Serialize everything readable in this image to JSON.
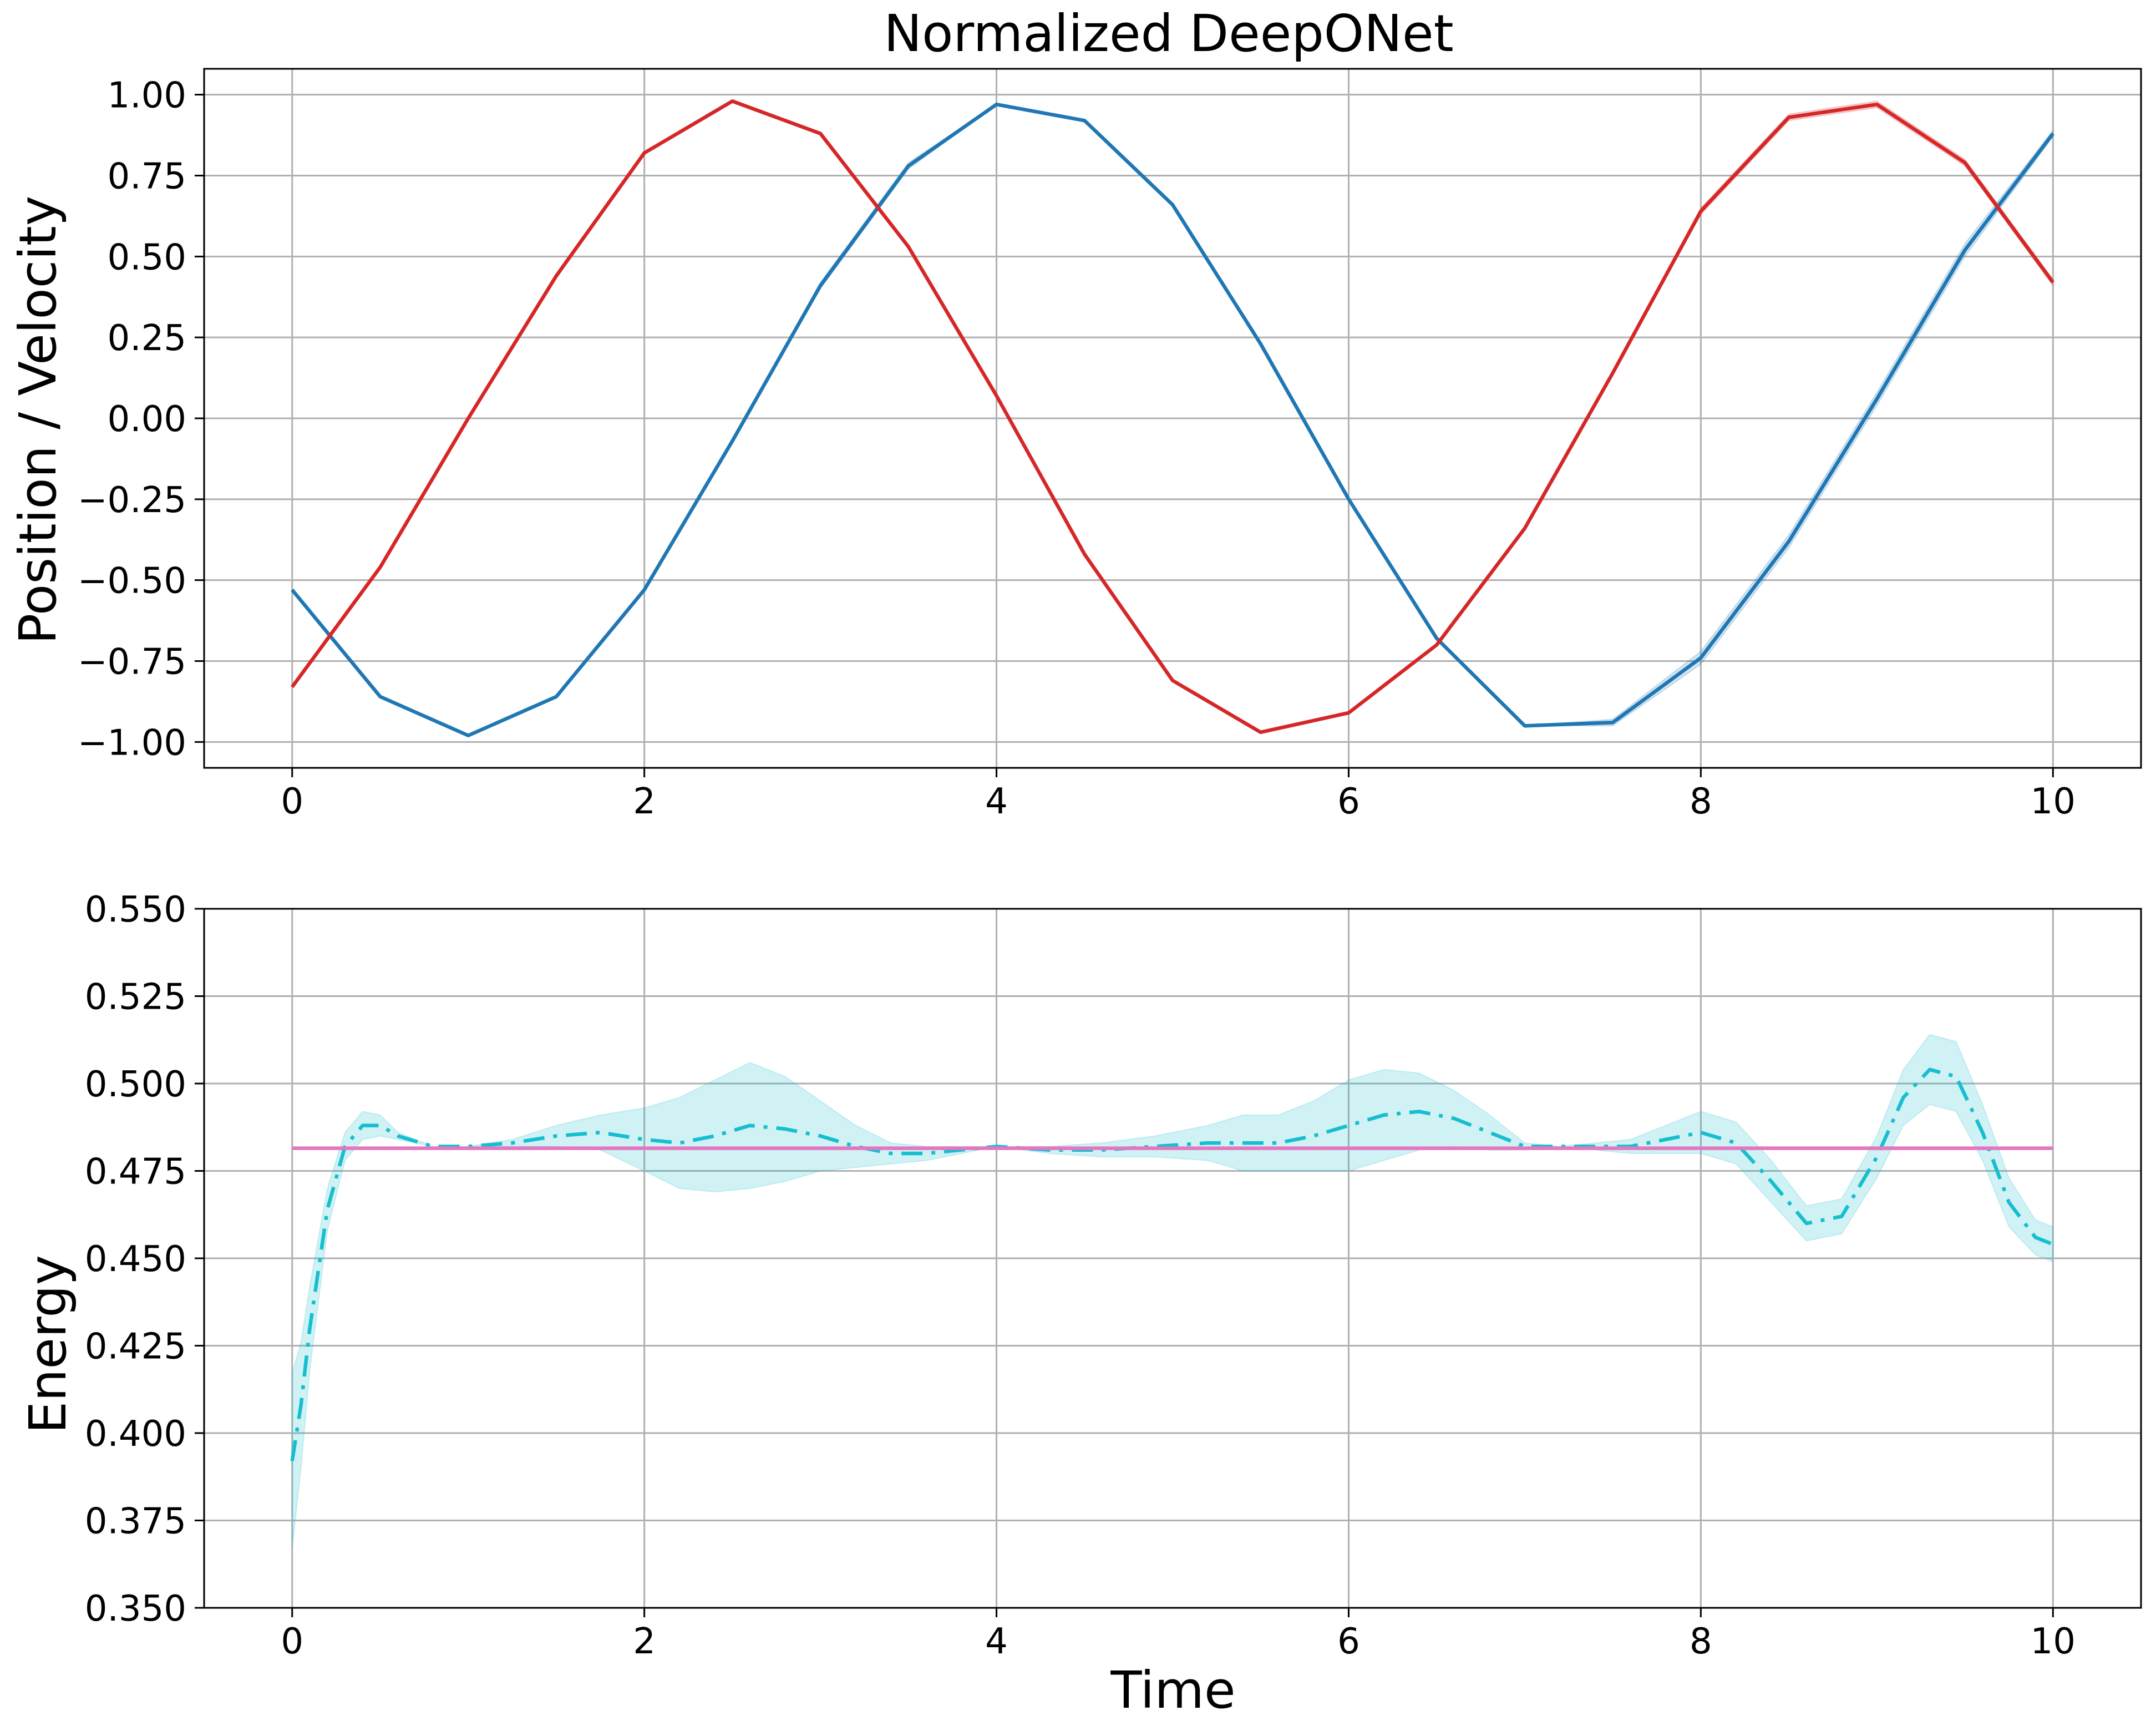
{
  "chart_data": [
    {
      "type": "line",
      "title": "Normalized DeepONet",
      "xlabel": "",
      "ylabel": "Position / Velocity",
      "xlim": [
        -0.5,
        10.5
      ],
      "ylim": [
        -1.08,
        1.08
      ],
      "grid": true,
      "x_ticks": [
        0,
        2,
        4,
        6,
        8,
        10
      ],
      "x_tick_labels": [
        "0",
        "2",
        "4",
        "6",
        "8",
        "10"
      ],
      "y_ticks": [
        1.0,
        0.75,
        0.5,
        0.25,
        0.0,
        -0.25,
        -0.5,
        -0.75,
        -1.0
      ],
      "y_tick_labels": [
        "1.00",
        "0.75",
        "0.50",
        "0.25",
        "0.00",
        "−0.25",
        "−0.50",
        "−0.75",
        "−1.00"
      ],
      "series": [
        {
          "color": "#1f77b4",
          "band_color": "#1f77b4",
          "x": [
            0,
            0.5,
            1.0,
            1.5,
            2.0,
            2.5,
            3.0,
            3.5,
            4.0,
            4.5,
            5.0,
            5.5,
            6.0,
            6.5,
            7.0,
            7.5,
            8.0,
            8.5,
            9.0,
            9.5,
            10.0
          ],
          "y": [
            -0.53,
            -0.86,
            -0.98,
            -0.86,
            -0.53,
            -0.07,
            0.41,
            0.78,
            0.97,
            0.92,
            0.66,
            0.23,
            -0.25,
            -0.68,
            -0.95,
            -0.94,
            -0.74,
            -0.38,
            0.06,
            0.52,
            0.88
          ],
          "band_halfwidth": [
            0,
            0,
            0,
            0,
            0,
            0,
            0.01,
            0.01,
            0,
            0,
            0,
            0,
            0,
            0,
            0,
            0.01,
            0.02,
            0.02,
            0.02,
            0.02,
            0.01
          ]
        },
        {
          "color": "#d62728",
          "band_color": "#d62728",
          "x": [
            0,
            0.5,
            1.0,
            1.5,
            2.0,
            2.5,
            3.0,
            3.5,
            4.0,
            4.5,
            5.0,
            5.5,
            6.0,
            6.5,
            7.0,
            7.5,
            8.0,
            8.5,
            9.0,
            9.5,
            10.0
          ],
          "y": [
            -0.83,
            -0.46,
            0.0,
            0.44,
            0.82,
            0.98,
            0.88,
            0.53,
            0.07,
            -0.42,
            -0.81,
            -0.97,
            -0.91,
            -0.7,
            -0.34,
            0.14,
            0.64,
            0.93,
            0.97,
            0.79,
            0.42
          ],
          "band_halfwidth": [
            0,
            0,
            0,
            0,
            0,
            0,
            0,
            0,
            0,
            0,
            0,
            0,
            0,
            0,
            0,
            0,
            0.01,
            0.01,
            0.01,
            0.01,
            0.01
          ]
        }
      ]
    },
    {
      "type": "line",
      "title": "",
      "xlabel": "Time",
      "ylabel": "Energy",
      "xlim": [
        -0.5,
        10.5
      ],
      "ylim": [
        0.35,
        0.55
      ],
      "grid": true,
      "x_ticks": [
        0,
        2,
        4,
        6,
        8,
        10
      ],
      "x_tick_labels": [
        "0",
        "2",
        "4",
        "6",
        "8",
        "10"
      ],
      "y_ticks": [
        0.35,
        0.375,
        0.4,
        0.425,
        0.45,
        0.475,
        0.5,
        0.525,
        0.55
      ],
      "y_tick_labels": [
        "0.350",
        "0.375",
        "0.400",
        "0.425",
        "0.450",
        "0.475",
        "0.500",
        "0.525",
        "0.550"
      ],
      "series": [
        {
          "color": "#17becf",
          "band_color": "#17becf",
          "dash": "dashdot",
          "x": [
            0,
            0.05,
            0.1,
            0.2,
            0.3,
            0.4,
            0.5,
            0.6,
            0.8,
            1.0,
            1.25,
            1.5,
            1.75,
            2.0,
            2.2,
            2.4,
            2.6,
            2.8,
            3.0,
            3.2,
            3.4,
            3.6,
            3.8,
            4.0,
            4.3,
            4.6,
            4.9,
            5.2,
            5.4,
            5.6,
            5.8,
            6.0,
            6.2,
            6.4,
            6.6,
            6.8,
            7.0,
            7.2,
            7.4,
            7.6,
            7.8,
            8.0,
            8.2,
            8.4,
            8.6,
            8.8,
            9.0,
            9.15,
            9.3,
            9.45,
            9.6,
            9.75,
            9.9,
            10.0
          ],
          "y": [
            0.392,
            0.408,
            0.43,
            0.464,
            0.482,
            0.488,
            0.488,
            0.485,
            0.482,
            0.482,
            0.483,
            0.485,
            0.486,
            0.484,
            0.483,
            0.485,
            0.488,
            0.487,
            0.485,
            0.482,
            0.48,
            0.48,
            0.481,
            0.482,
            0.481,
            0.481,
            0.482,
            0.483,
            0.483,
            0.483,
            0.485,
            0.488,
            0.491,
            0.492,
            0.49,
            0.486,
            0.482,
            0.482,
            0.482,
            0.482,
            0.484,
            0.486,
            0.483,
            0.472,
            0.46,
            0.462,
            0.479,
            0.496,
            0.504,
            0.502,
            0.486,
            0.466,
            0.456,
            0.454
          ],
          "band_halfwidth": [
            0.025,
            0.018,
            0.012,
            0.006,
            0.004,
            0.004,
            0.003,
            0.001,
            0.0,
            0.0,
            0.001,
            0.003,
            0.005,
            0.009,
            0.013,
            0.016,
            0.018,
            0.015,
            0.01,
            0.006,
            0.003,
            0.002,
            0.001,
            0.0,
            0.001,
            0.002,
            0.003,
            0.005,
            0.008,
            0.008,
            0.01,
            0.013,
            0.013,
            0.011,
            0.008,
            0.005,
            0.001,
            0.0,
            0.001,
            0.002,
            0.004,
            0.006,
            0.006,
            0.006,
            0.005,
            0.005,
            0.006,
            0.008,
            0.01,
            0.01,
            0.008,
            0.007,
            0.005,
            0.005
          ]
        },
        {
          "color": "#e377c2",
          "x": [
            0,
            10
          ],
          "y": [
            0.4815,
            0.4815
          ]
        }
      ]
    }
  ]
}
